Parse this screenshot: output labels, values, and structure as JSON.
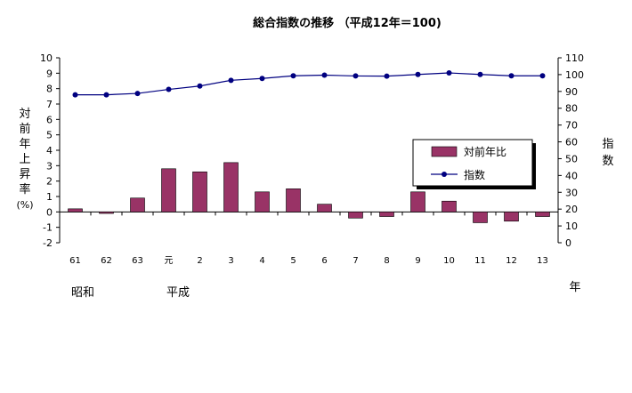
{
  "chart_data": {
    "type": "bar",
    "title": "総合指数の推移 （平成12年＝100)",
    "categories": [
      "61",
      "62",
      "63",
      "元",
      "2",
      "3",
      "4",
      "5",
      "6",
      "7",
      "8",
      "9",
      "10",
      "11",
      "12",
      "13"
    ],
    "era_labels": [
      "昭和",
      "平成"
    ],
    "x_unit": "年",
    "left_axis": {
      "label_chars": [
        "対",
        "前",
        "年",
        "上",
        "昇",
        "率",
        "(%)"
      ],
      "ylim": [
        -2,
        10
      ],
      "ticks": [
        "-2",
        "-1",
        "0",
        "1",
        "2",
        "3",
        "4",
        "5",
        "6",
        "7",
        "8",
        "9",
        "10"
      ]
    },
    "right_axis": {
      "label_chars": [
        "指",
        "数"
      ],
      "ylim": [
        0,
        110
      ],
      "ticks": [
        "0",
        "10",
        "20",
        "30",
        "40",
        "50",
        "60",
        "70",
        "80",
        "90",
        "100",
        "110"
      ]
    },
    "series": [
      {
        "name": "対前年比",
        "kind": "bar",
        "axis": "left",
        "color": "#993366",
        "values": [
          0.2,
          -0.1,
          0.9,
          2.8,
          2.6,
          3.2,
          1.3,
          1.5,
          0.5,
          -0.4,
          -0.3,
          1.3,
          0.7,
          -0.7,
          -0.6,
          -0.3
        ]
      },
      {
        "name": "指数",
        "kind": "line",
        "axis": "right",
        "color": "#000080",
        "values": [
          88.0,
          88.0,
          88.8,
          91.2,
          93.2,
          96.6,
          97.7,
          99.3,
          99.7,
          99.2,
          99.1,
          100.1,
          101.0,
          100.1,
          99.3,
          99.3
        ]
      }
    ],
    "legend": {
      "position": "center-right"
    },
    "grid": false
  }
}
